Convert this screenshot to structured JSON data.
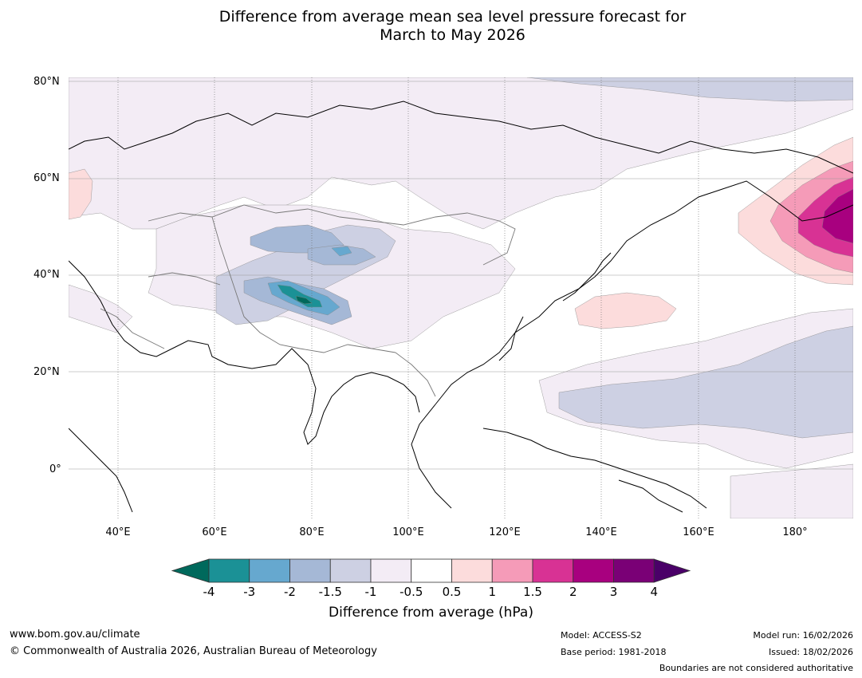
{
  "title": {
    "line1": "Difference from average mean sea level pressure forecast for",
    "line2": "March to May 2026"
  },
  "map": {
    "lat_labels": [
      "80°N",
      "60°N",
      "40°N",
      "20°N",
      "0°"
    ],
    "lon_labels": [
      "40°E",
      "60°E",
      "80°E",
      "100°E",
      "120°E",
      "140°E",
      "160°E",
      "180°"
    ],
    "anomaly_colors": {
      "neg_4_plus": "#00695c",
      "neg_3_4": "#1b9196",
      "neg_2_3": "#66a8cf",
      "neg_1_5_2": "#a5b8d6",
      "neg_1_1_5": "#cdd0e3",
      "neg_0_5_1": "#f3ecf5",
      "neutral": "#ffffff",
      "pos_0_5_1": "#fcdcdc",
      "pos_1_1_5": "#f59bb8",
      "pos_1_5_2": "#d83294",
      "pos_2_3": "#a8007f",
      "pos_3_4": "#7a0076",
      "pos_4_plus": "#4a0068"
    }
  },
  "colorbar": {
    "ticks": [
      "-4",
      "-3",
      "-2",
      "-1.5",
      "-1",
      "-0.5",
      "0.5",
      "1",
      "1.5",
      "2",
      "3",
      "4"
    ],
    "colors": [
      "#00695c",
      "#1b9196",
      "#66a8cf",
      "#a5b8d6",
      "#cdd0e3",
      "#f3ecf5",
      "#ffffff",
      "#fcdcdc",
      "#f59bb8",
      "#d83294",
      "#a8007f",
      "#7a0076",
      "#4a0068"
    ],
    "title": "Difference from average (hPa)"
  },
  "footer": {
    "website": "www.bom.gov.au/climate",
    "copyright": "© Commonwealth of Australia 2026, Australian Bureau of Meteorology",
    "model": "Model: ACCESS-S2",
    "base_period": "Base period: 1981-2018",
    "model_run": "Model run: 16/02/2026",
    "issued": "Issued: 18/02/2026",
    "disclaimer": "Boundaries are not considered authoritative"
  }
}
